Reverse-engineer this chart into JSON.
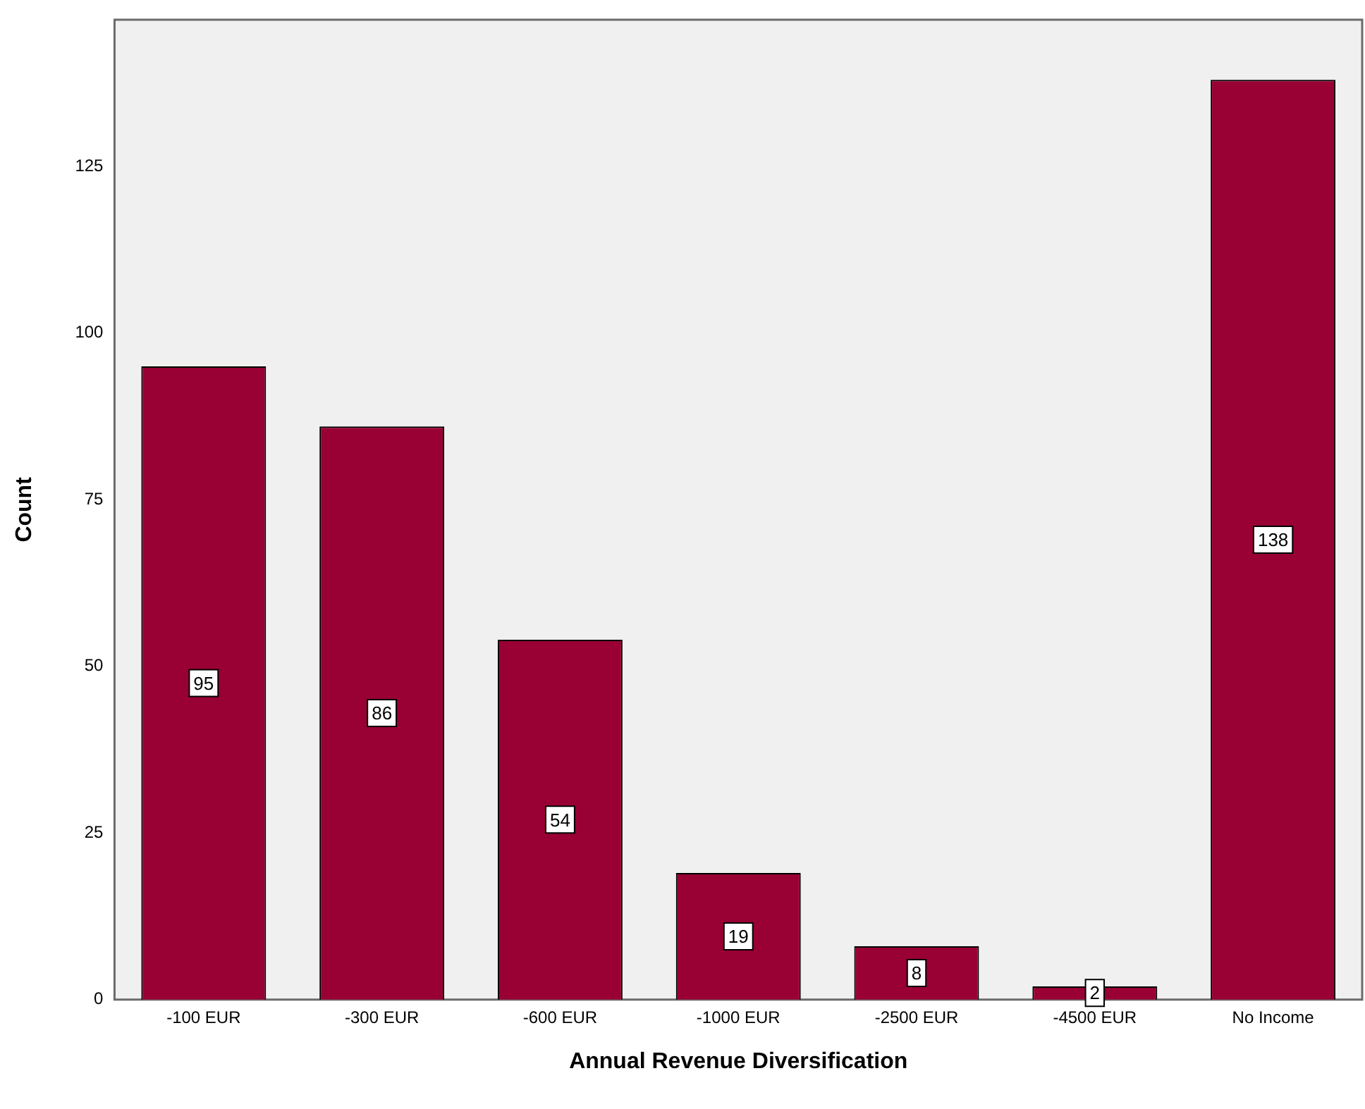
{
  "chart_data": {
    "type": "bar",
    "xlabel": "Annual Revenue Diversification",
    "ylabel": "Count",
    "categories": [
      "-100 EUR",
      "-300 EUR",
      "-600 EUR",
      "-1000 EUR",
      "-2500 EUR",
      "-4500 EUR",
      "No Income"
    ],
    "values": [
      95,
      86,
      54,
      19,
      8,
      2,
      138
    ],
    "color": "#990033",
    "ylim": [
      0,
      147
    ],
    "yticks": [
      0,
      25,
      50,
      75,
      100,
      125
    ],
    "grid": false,
    "legend": false,
    "data_labels": true
  }
}
